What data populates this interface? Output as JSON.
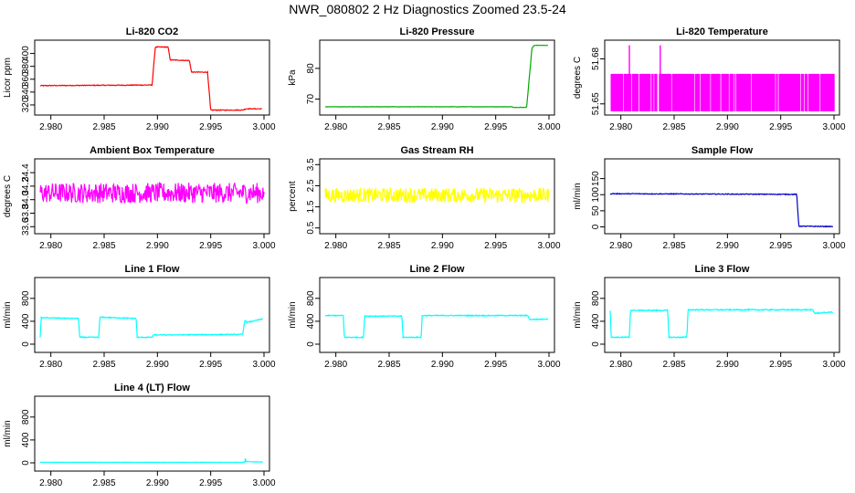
{
  "figure": {
    "title": "NWR_080802  2 Hz Diagnostics Zoomed 23.5-24"
  },
  "chart_data": [
    {
      "type": "line",
      "title": "Li-820 CO2",
      "ylabel": "Licor ppm",
      "color": "#ff0000",
      "xlim": [
        2.979,
        3.0
      ],
      "ylim": [
        310,
        415
      ],
      "xticks": [
        2.98,
        2.985,
        2.99,
        2.995,
        3.0
      ],
      "xtick_labels": [
        "2.980",
        "2.985",
        "2.990",
        "2.995",
        "3.000"
      ],
      "yticks": [
        320,
        340,
        360,
        380,
        400
      ],
      "ytick_labels": [
        "320",
        "340",
        "360",
        "380",
        "400"
      ],
      "series": [
        {
          "x": [
            2.979,
            2.9895,
            2.9898,
            2.991,
            2.9912,
            2.993,
            2.9932,
            2.9947,
            2.995,
            2.998,
            2.9983,
            2.9998
          ],
          "y": [
            350,
            351,
            410,
            410,
            390,
            389,
            371,
            371,
            312,
            312,
            314,
            314
          ],
          "noise": 0.6
        }
      ]
    },
    {
      "type": "line",
      "title": "Li-820 Pressure",
      "ylabel": "kPa",
      "color": "#00aa00",
      "xlim": [
        2.979,
        3.0
      ],
      "ylim": [
        66,
        88
      ],
      "xticks": [
        2.98,
        2.985,
        2.99,
        2.995,
        3.0
      ],
      "xtick_labels": [
        "2.980",
        "2.985",
        "2.990",
        "2.995",
        "3.000"
      ],
      "yticks": [
        70,
        80
      ],
      "ytick_labels": [
        "70",
        "80"
      ],
      "series": [
        {
          "x": [
            2.979,
            2.9965,
            2.9967,
            2.9979,
            2.9984,
            2.9986,
            2.9999
          ],
          "y": [
            67.5,
            67.5,
            67.3,
            67.3,
            86.5,
            87.5,
            87.5
          ],
          "noise": 0.05
        }
      ]
    },
    {
      "type": "line",
      "title": "Li-820 Temperature",
      "ylabel": "degrees C",
      "color": "#ff00ff",
      "xlim": [
        2.979,
        3.0
      ],
      "ylim": [
        51.645,
        51.69
      ],
      "xticks": [
        2.98,
        2.985,
        2.99,
        2.995,
        3.0
      ],
      "xtick_labels": [
        "2.980",
        "2.985",
        "2.990",
        "2.995",
        "3.000"
      ],
      "yticks": [
        51.65,
        51.68
      ],
      "ytick_labels": [
        "51.65",
        "51.68"
      ],
      "series": [
        {
          "x": [
            2.979,
            3.0
          ],
          "y": [
            51.6575,
            51.6575
          ],
          "band": [
            51.645,
            51.67
          ],
          "noise": 0
        }
      ]
    },
    {
      "type": "line",
      "title": "Ambient Box Temperature",
      "ylabel": "degrees C",
      "color": "#ff00ff",
      "xlim": [
        2.979,
        3.0
      ],
      "ylim": [
        33.55,
        34.55
      ],
      "xticks": [
        2.98,
        2.985,
        2.99,
        2.995,
        3.0
      ],
      "xtick_labels": [
        "2.980",
        "2.985",
        "2.990",
        "2.995",
        "3.000"
      ],
      "yticks": [
        33.6,
        33.8,
        34.0,
        34.2,
        34.4
      ],
      "ytick_labels": [
        "33.6",
        "33.8",
        "34.0",
        "34.2",
        "34.4"
      ],
      "series": [
        {
          "x": [
            2.979,
            3.0
          ],
          "y": [
            34.1,
            34.1
          ],
          "noise": 0.15
        }
      ]
    },
    {
      "type": "line",
      "title": "Gas Stream RH",
      "ylabel": "percent",
      "color": "#ffff00",
      "xlim": [
        2.979,
        3.0
      ],
      "ylim": [
        0.4,
        3.6
      ],
      "xticks": [
        2.98,
        2.985,
        2.99,
        2.995,
        3.0
      ],
      "xtick_labels": [
        "2.980",
        "2.985",
        "2.990",
        "2.995",
        "3.000"
      ],
      "yticks": [
        0.5,
        1.5,
        2.5,
        3.5
      ],
      "ytick_labels": [
        "0.5",
        "1.5",
        "2.5",
        "3.5"
      ],
      "series": [
        {
          "x": [
            2.979,
            3.0
          ],
          "y": [
            2.05,
            2.05
          ],
          "noise": 0.35
        }
      ]
    },
    {
      "type": "line",
      "title": "Sample Flow",
      "ylabel": "ml/min",
      "color": "#0000cc",
      "xlim": [
        2.979,
        3.0
      ],
      "ylim": [
        -10,
        200
      ],
      "xticks": [
        2.98,
        2.985,
        2.99,
        2.995,
        3.0
      ],
      "xtick_labels": [
        "2.980",
        "2.985",
        "2.990",
        "2.995",
        "3.000"
      ],
      "yticks": [
        0,
        50,
        100,
        150
      ],
      "ytick_labels": [
        "0",
        "50",
        "100",
        "150"
      ],
      "series": [
        {
          "x": [
            2.979,
            2.9965,
            2.9967,
            2.9999
          ],
          "y": [
            103,
            101,
            2,
            1
          ],
          "noise": 1.2
        }
      ]
    },
    {
      "type": "line",
      "title": "Line 1 Flow",
      "ylabel": "ml/min",
      "color": "#00ffff",
      "xlim": [
        2.979,
        3.0
      ],
      "ylim": [
        -80,
        1100
      ],
      "xticks": [
        2.98,
        2.985,
        2.99,
        2.995,
        3.0
      ],
      "xtick_labels": [
        "2.980",
        "2.985",
        "2.990",
        "2.995",
        "3.000"
      ],
      "yticks": [
        0,
        400,
        800
      ],
      "ytick_labels": [
        "0",
        "400",
        "800"
      ],
      "series": [
        {
          "x": [
            2.979,
            2.9791,
            2.9792,
            2.9826,
            2.9827,
            2.9845,
            2.9846,
            2.988,
            2.9881,
            2.9895,
            2.9896,
            2.998,
            2.9982,
            2.9984,
            2.9999
          ],
          "y": [
            120,
            470,
            460,
            450,
            120,
            120,
            470,
            450,
            120,
            120,
            160,
            170,
            420,
            380,
            440
          ],
          "noise": 8
        }
      ]
    },
    {
      "type": "line",
      "title": "Line 2 Flow",
      "ylabel": "ml/min",
      "color": "#00ffff",
      "xlim": [
        2.979,
        3.0
      ],
      "ylim": [
        -80,
        1100
      ],
      "xticks": [
        2.98,
        2.985,
        2.99,
        2.995,
        3.0
      ],
      "xtick_labels": [
        "2.980",
        "2.985",
        "2.990",
        "2.995",
        "3.000"
      ],
      "yticks": [
        0,
        400,
        800
      ],
      "ytick_labels": [
        "0",
        "400",
        "800"
      ],
      "series": [
        {
          "x": [
            2.979,
            2.9807,
            2.9808,
            2.9826,
            2.9827,
            2.9862,
            2.9863,
            2.988,
            2.9881,
            2.998,
            2.9982,
            2.9999
          ],
          "y": [
            500,
            500,
            120,
            120,
            490,
            490,
            120,
            120,
            500,
            500,
            430,
            440
          ],
          "noise": 8
        }
      ]
    },
    {
      "type": "line",
      "title": "Line 3 Flow",
      "ylabel": "ml/min",
      "color": "#00ffff",
      "xlim": [
        2.979,
        3.0
      ],
      "ylim": [
        -80,
        1100
      ],
      "xticks": [
        2.98,
        2.985,
        2.99,
        2.995,
        3.0
      ],
      "xtick_labels": [
        "2.980",
        "2.985",
        "2.990",
        "2.995",
        "3.000"
      ],
      "yticks": [
        0,
        400,
        800
      ],
      "ytick_labels": [
        "0",
        "400",
        "800"
      ],
      "series": [
        {
          "x": [
            2.979,
            2.9791,
            2.9792,
            2.9808,
            2.9809,
            2.9844,
            2.9845,
            2.9862,
            2.9863,
            2.998,
            2.9982,
            2.9999
          ],
          "y": [
            590,
            120,
            120,
            120,
            590,
            590,
            120,
            120,
            600,
            600,
            540,
            560
          ],
          "noise": 10
        }
      ]
    },
    {
      "type": "line",
      "title": "Line 4 (LT) Flow",
      "ylabel": "ml/min",
      "color": "#00ffff",
      "xlim": [
        2.979,
        3.0
      ],
      "ylim": [
        -80,
        1100
      ],
      "xticks": [
        2.98,
        2.985,
        2.99,
        2.995,
        3.0
      ],
      "xtick_labels": [
        "2.980",
        "2.985",
        "2.990",
        "2.995",
        "3.000"
      ],
      "yticks": [
        0,
        400,
        800
      ],
      "ytick_labels": [
        "0",
        "400",
        "800"
      ],
      "series": [
        {
          "x": [
            2.979,
            2.9982,
            2.99825,
            2.9983,
            2.9999
          ],
          "y": [
            10,
            10,
            90,
            20,
            15
          ],
          "noise": 2
        }
      ]
    }
  ]
}
